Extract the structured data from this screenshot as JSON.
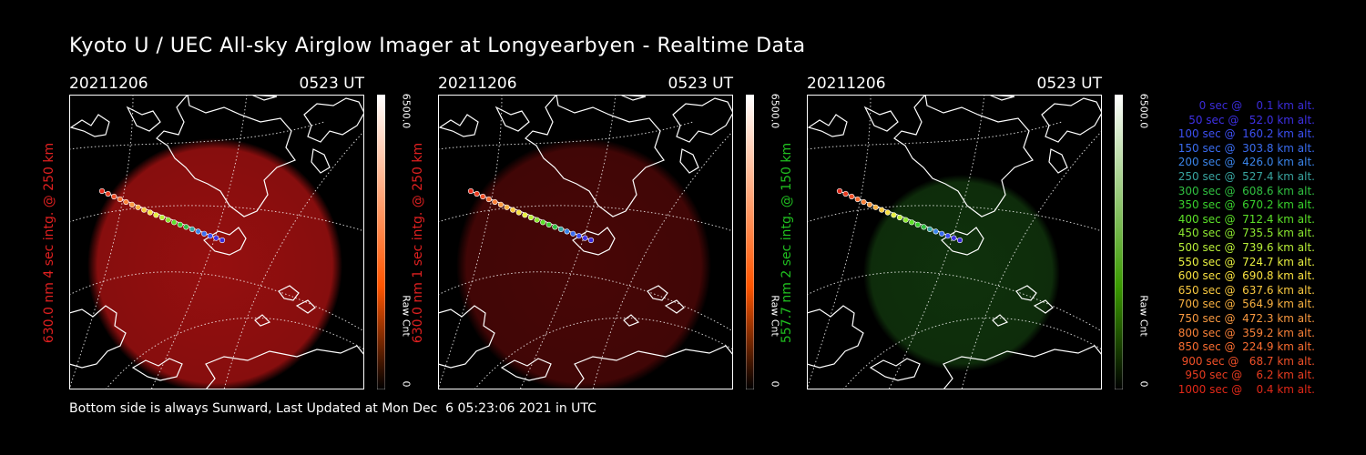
{
  "title": "Kyoto U / UEC All-sky Airglow Imager at Longyearbyen - Realtime Data",
  "footer": "Bottom side is always Sunward, Last Updated at Mon Dec  6 05:23:06 2021 in UTC",
  "panels": [
    {
      "date": "20211206",
      "time": "0523 UT",
      "ylabel": "630.0 nm 4 sec intg. @ 250 km",
      "label_color": "#e02020",
      "glow_color": "#b01212",
      "glow_opacity": 0.85,
      "bar_color": "#ff5500",
      "cb_max": "6500.0",
      "cb_unit": "Raw Cnt",
      "cb_min": "0"
    },
    {
      "date": "20211206",
      "time": "0523 UT",
      "ylabel": "630.0 nm 1 sec intg. @ 250 km",
      "label_color": "#e02020",
      "glow_color": "#5a0808",
      "glow_opacity": 0.8,
      "bar_color": "#ff5500",
      "cb_max": "6500.0",
      "cb_unit": "Raw Cnt",
      "cb_min": "0"
    },
    {
      "date": "20211206",
      "time": "0523 UT",
      "ylabel": "557.7 nm 2 sec intg. @ 150 km",
      "label_color": "#20c020",
      "glow_color": "#123a0e",
      "glow_opacity": 0.85,
      "bar_color": "#3a9a00",
      "cb_max": "6500.0",
      "cb_unit": "Raw Cnt",
      "cb_min": "0"
    }
  ],
  "legend": [
    {
      "text": "   0 sec @    0.1 km alt.",
      "color": "#3a2bd8"
    },
    {
      "text": "  50 sec @   52.0 km alt.",
      "color": "#3e30e6"
    },
    {
      "text": " 100 sec @  160.2 km alt.",
      "color": "#3c4ff2"
    },
    {
      "text": " 150 sec @  303.8 km alt.",
      "color": "#3a6cf0"
    },
    {
      "text": " 200 sec @  426.0 km alt.",
      "color": "#3a84e8"
    },
    {
      "text": " 250 sec @  527.4 km alt.",
      "color": "#38a4a0"
    },
    {
      "text": " 300 sec @  608.6 km alt.",
      "color": "#30c040"
    },
    {
      "text": " 350 sec @  670.2 km alt.",
      "color": "#38d02c"
    },
    {
      "text": " 400 sec @  712.4 km alt.",
      "color": "#5ce028"
    },
    {
      "text": " 450 sec @  735.5 km alt.",
      "color": "#8ce830"
    },
    {
      "text": " 500 sec @  739.6 km alt.",
      "color": "#b8ee38"
    },
    {
      "text": " 550 sec @  724.7 km alt.",
      "color": "#e8f040"
    },
    {
      "text": " 600 sec @  690.8 km alt.",
      "color": "#f8e040"
    },
    {
      "text": " 650 sec @  637.6 km alt.",
      "color": "#f8c840"
    },
    {
      "text": " 700 sec @  564.9 km alt.",
      "color": "#f8b040"
    },
    {
      "text": " 750 sec @  472.3 km alt.",
      "color": "#f89840"
    },
    {
      "text": " 800 sec @  359.2 km alt.",
      "color": "#f88038"
    },
    {
      "text": " 850 sec @  224.9 km alt.",
      "color": "#f86c30"
    },
    {
      "text": " 900 sec @   68.7 km alt.",
      "color": "#f05028"
    },
    {
      "text": " 950 sec @    6.2 km alt.",
      "color": "#e83c20"
    },
    {
      "text": "1000 sec @    0.4 km alt.",
      "color": "#e02818"
    }
  ]
}
